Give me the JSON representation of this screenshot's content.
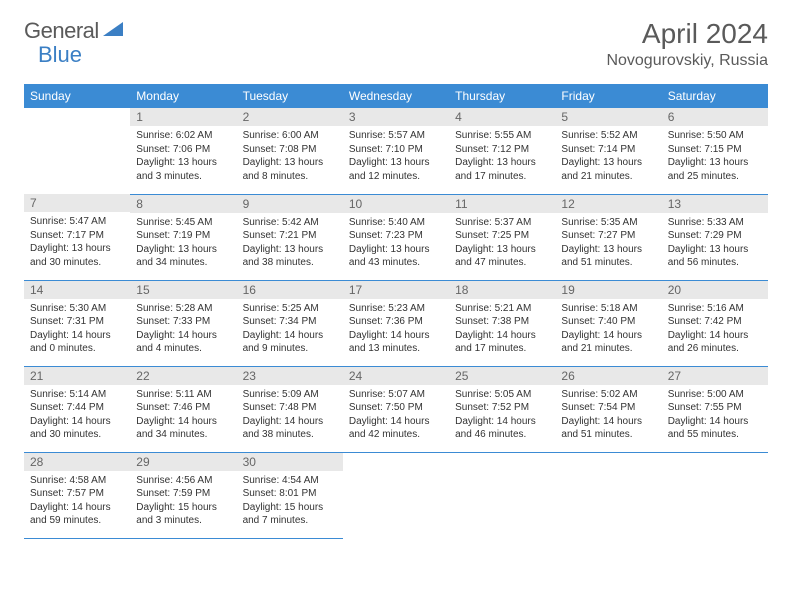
{
  "logo": {
    "text1": "General",
    "text2": "Blue"
  },
  "title": "April 2024",
  "location": "Novogurovskiy, Russia",
  "header_bg": "#3b8bd4",
  "header_text_color": "#ffffff",
  "daynum_bg": "#e8e8e8",
  "border_color": "#3b8bd4",
  "weekdays": [
    "Sunday",
    "Monday",
    "Tuesday",
    "Wednesday",
    "Thursday",
    "Friday",
    "Saturday"
  ],
  "weeks": [
    [
      null,
      {
        "d": "1",
        "sr": "6:02 AM",
        "ss": "7:06 PM",
        "dl": "13 hours and 3 minutes."
      },
      {
        "d": "2",
        "sr": "6:00 AM",
        "ss": "7:08 PM",
        "dl": "13 hours and 8 minutes."
      },
      {
        "d": "3",
        "sr": "5:57 AM",
        "ss": "7:10 PM",
        "dl": "13 hours and 12 minutes."
      },
      {
        "d": "4",
        "sr": "5:55 AM",
        "ss": "7:12 PM",
        "dl": "13 hours and 17 minutes."
      },
      {
        "d": "5",
        "sr": "5:52 AM",
        "ss": "7:14 PM",
        "dl": "13 hours and 21 minutes."
      },
      {
        "d": "6",
        "sr": "5:50 AM",
        "ss": "7:15 PM",
        "dl": "13 hours and 25 minutes."
      }
    ],
    [
      {
        "d": "7",
        "sr": "5:47 AM",
        "ss": "7:17 PM",
        "dl": "13 hours and 30 minutes."
      },
      {
        "d": "8",
        "sr": "5:45 AM",
        "ss": "7:19 PM",
        "dl": "13 hours and 34 minutes."
      },
      {
        "d": "9",
        "sr": "5:42 AM",
        "ss": "7:21 PM",
        "dl": "13 hours and 38 minutes."
      },
      {
        "d": "10",
        "sr": "5:40 AM",
        "ss": "7:23 PM",
        "dl": "13 hours and 43 minutes."
      },
      {
        "d": "11",
        "sr": "5:37 AM",
        "ss": "7:25 PM",
        "dl": "13 hours and 47 minutes."
      },
      {
        "d": "12",
        "sr": "5:35 AM",
        "ss": "7:27 PM",
        "dl": "13 hours and 51 minutes."
      },
      {
        "d": "13",
        "sr": "5:33 AM",
        "ss": "7:29 PM",
        "dl": "13 hours and 56 minutes."
      }
    ],
    [
      {
        "d": "14",
        "sr": "5:30 AM",
        "ss": "7:31 PM",
        "dl": "14 hours and 0 minutes."
      },
      {
        "d": "15",
        "sr": "5:28 AM",
        "ss": "7:33 PM",
        "dl": "14 hours and 4 minutes."
      },
      {
        "d": "16",
        "sr": "5:25 AM",
        "ss": "7:34 PM",
        "dl": "14 hours and 9 minutes."
      },
      {
        "d": "17",
        "sr": "5:23 AM",
        "ss": "7:36 PM",
        "dl": "14 hours and 13 minutes."
      },
      {
        "d": "18",
        "sr": "5:21 AM",
        "ss": "7:38 PM",
        "dl": "14 hours and 17 minutes."
      },
      {
        "d": "19",
        "sr": "5:18 AM",
        "ss": "7:40 PM",
        "dl": "14 hours and 21 minutes."
      },
      {
        "d": "20",
        "sr": "5:16 AM",
        "ss": "7:42 PM",
        "dl": "14 hours and 26 minutes."
      }
    ],
    [
      {
        "d": "21",
        "sr": "5:14 AM",
        "ss": "7:44 PM",
        "dl": "14 hours and 30 minutes."
      },
      {
        "d": "22",
        "sr": "5:11 AM",
        "ss": "7:46 PM",
        "dl": "14 hours and 34 minutes."
      },
      {
        "d": "23",
        "sr": "5:09 AM",
        "ss": "7:48 PM",
        "dl": "14 hours and 38 minutes."
      },
      {
        "d": "24",
        "sr": "5:07 AM",
        "ss": "7:50 PM",
        "dl": "14 hours and 42 minutes."
      },
      {
        "d": "25",
        "sr": "5:05 AM",
        "ss": "7:52 PM",
        "dl": "14 hours and 46 minutes."
      },
      {
        "d": "26",
        "sr": "5:02 AM",
        "ss": "7:54 PM",
        "dl": "14 hours and 51 minutes."
      },
      {
        "d": "27",
        "sr": "5:00 AM",
        "ss": "7:55 PM",
        "dl": "14 hours and 55 minutes."
      }
    ],
    [
      {
        "d": "28",
        "sr": "4:58 AM",
        "ss": "7:57 PM",
        "dl": "14 hours and 59 minutes."
      },
      {
        "d": "29",
        "sr": "4:56 AM",
        "ss": "7:59 PM",
        "dl": "15 hours and 3 minutes."
      },
      {
        "d": "30",
        "sr": "4:54 AM",
        "ss": "8:01 PM",
        "dl": "15 hours and 7 minutes."
      },
      null,
      null,
      null,
      null
    ]
  ],
  "labels": {
    "sunrise": "Sunrise:",
    "sunset": "Sunset:",
    "daylight": "Daylight:"
  }
}
